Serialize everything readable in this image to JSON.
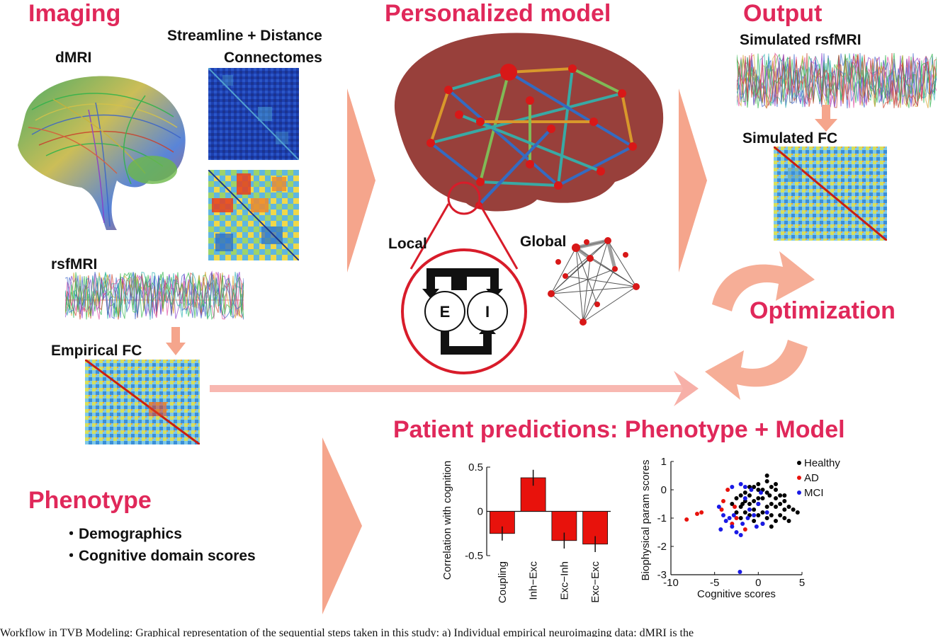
{
  "headings": {
    "imaging": "Imaging",
    "personalized_model": "Personalized model",
    "output": "Output",
    "optimization": "Optimization",
    "patient_predictions": "Patient predictions: Phenotype + Model",
    "phenotype": "Phenotype"
  },
  "labels": {
    "dmri": "dMRI",
    "connectomes_line1": "Streamline + Distance",
    "connectomes_line2": "Connectomes",
    "rsfmri": "rsfMRI",
    "empirical_fc": "Empirical FC",
    "local": "Local",
    "global": "Global",
    "node_e": "E",
    "node_i": "I",
    "simulated_rsfmri": "Simulated rsfMRI",
    "simulated_fc": "Simulated FC"
  },
  "phenotype_items": [
    "・Demographics",
    "・Cognitive domain scores"
  ],
  "caption": "Workflow in TVB Modeling: Graphical representation of the sequential steps taken in this study: a) Individual empirical neuroimaging data: dMRI is the",
  "colors": {
    "accent": "#e0285a",
    "arrow": "#f5a58c",
    "bar": "#e8120c"
  },
  "chart_data": [
    {
      "type": "bar",
      "categories": [
        "Coupling",
        "Inh−Exc",
        "Exc−Inh",
        "Exc−Exc"
      ],
      "values": [
        -0.25,
        0.38,
        -0.33,
        -0.37
      ],
      "errors": [
        0.08,
        0.09,
        0.09,
        0.09
      ],
      "ylabel": "Correlation with cognition",
      "ylim": [
        -0.5,
        0.5
      ],
      "yticks": [
        "0.5",
        "0",
        "-0.5"
      ],
      "grid": false
    },
    {
      "type": "scatter",
      "xlabel": "Cognitive scores",
      "ylabel": "Biophysical param scores",
      "xlim": [
        -10,
        5
      ],
      "ylim": [
        -3,
        1
      ],
      "xticks": [
        "-10",
        "-5",
        "0",
        "5"
      ],
      "yticks": [
        "1",
        "0",
        "-1",
        "-2",
        "-3"
      ],
      "legend_position": "top-right",
      "series": [
        {
          "name": "Healthy",
          "color": "#000000",
          "points": [
            [
              -2.5,
              -0.3
            ],
            [
              -2,
              -0.2
            ],
            [
              -1.5,
              -0.4
            ],
            [
              -1,
              -0.2
            ],
            [
              -0.5,
              0.1
            ],
            [
              0,
              0.2
            ],
            [
              0.5,
              0
            ],
            [
              1,
              -0.1
            ],
            [
              1.5,
              0.1
            ],
            [
              2,
              -0.3
            ],
            [
              2.5,
              -0.2
            ],
            [
              3,
              -0.4
            ],
            [
              3.5,
              -0.6
            ],
            [
              4,
              -0.7
            ],
            [
              -2,
              -0.6
            ],
            [
              -1.5,
              -0.8
            ],
            [
              -1,
              -0.9
            ],
            [
              -0.5,
              -0.7
            ],
            [
              0,
              -0.5
            ],
            [
              0.5,
              -0.8
            ],
            [
              1,
              -1
            ],
            [
              1.5,
              -0.9
            ],
            [
              2,
              -0.6
            ],
            [
              2.5,
              -0.9
            ],
            [
              3,
              -1
            ],
            [
              -3,
              -0.5
            ],
            [
              -2.5,
              -0.8
            ],
            [
              -1,
              -0.5
            ],
            [
              0,
              -0.9
            ],
            [
              1,
              -0.6
            ],
            [
              2,
              -1.1
            ],
            [
              3,
              -0.2
            ],
            [
              -0.5,
              -1.1
            ],
            [
              0.5,
              -0.3
            ],
            [
              1.5,
              -0.5
            ],
            [
              2.5,
              -0.5
            ],
            [
              -1.5,
              -0.1
            ],
            [
              0,
              0
            ],
            [
              1,
              0.3
            ],
            [
              2,
              0.2
            ],
            [
              4.5,
              -0.8
            ],
            [
              3.5,
              -1.1
            ],
            [
              -2,
              -1
            ],
            [
              0.5,
              -1.2
            ],
            [
              1.5,
              -1.3
            ],
            [
              -0.5,
              -0.4
            ],
            [
              2,
              0
            ],
            [
              1,
              0.5
            ],
            [
              -1,
              0.1
            ],
            [
              3,
              -0.7
            ],
            [
              0,
              -0.3
            ],
            [
              1.3,
              -0.2
            ],
            [
              -1.8,
              -0.5
            ]
          ]
        },
        {
          "name": "AD",
          "color": "#e8120c",
          "points": [
            [
              -8.2,
              -1.05
            ],
            [
              -7,
              -0.85
            ],
            [
              -6.5,
              -0.8
            ],
            [
              -4,
              -0.4
            ],
            [
              -3.5,
              0
            ],
            [
              -4.2,
              -0.7
            ],
            [
              -3,
              -1.2
            ],
            [
              -2.5,
              -1
            ],
            [
              -1.5,
              -1.4
            ],
            [
              -2.7,
              -0.6
            ]
          ]
        },
        {
          "name": "MCI",
          "color": "#1a1ae6",
          "points": [
            [
              -4.5,
              -0.6
            ],
            [
              -4,
              -0.9
            ],
            [
              -3.7,
              -1.1
            ],
            [
              -3,
              -1.3
            ],
            [
              -2.5,
              -1.5
            ],
            [
              -2,
              -1.6
            ],
            [
              -1.8,
              -1.2
            ],
            [
              -1.5,
              -0.3
            ],
            [
              -1,
              -0.7
            ],
            [
              -0.8,
              0
            ],
            [
              -0.5,
              -0.9
            ],
            [
              0,
              -0.5
            ],
            [
              0.5,
              -1.2
            ],
            [
              1,
              -0.8
            ],
            [
              -3,
              0.1
            ],
            [
              -2,
              0.2
            ],
            [
              -1.2,
              -1
            ],
            [
              -4.3,
              -1.4
            ],
            [
              -3.3,
              -1
            ],
            [
              0.3,
              -0.1
            ],
            [
              -1.5,
              0.1
            ],
            [
              -2.1,
              -2.9
            ],
            [
              -2.8,
              -0.9
            ],
            [
              -0.2,
              -1.3
            ]
          ]
        }
      ]
    }
  ]
}
